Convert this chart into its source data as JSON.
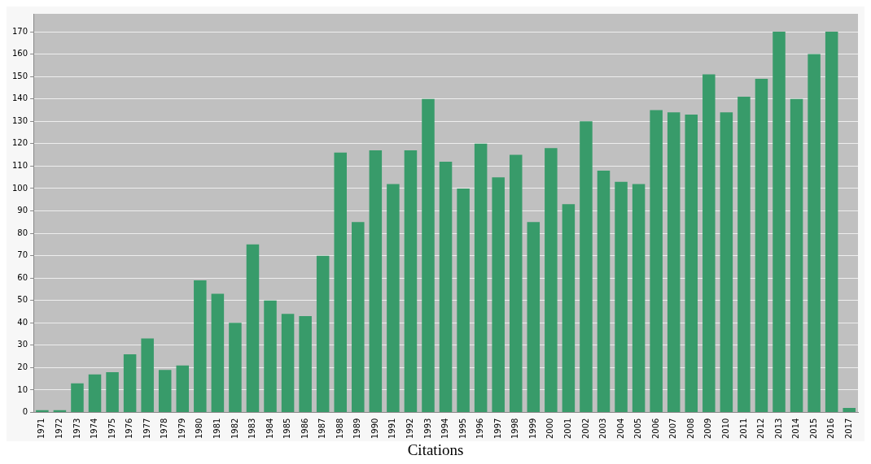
{
  "chart_data": {
    "type": "bar",
    "annotations": [
      "Citations"
    ],
    "categories": [
      "1971",
      "1972",
      "1973",
      "1974",
      "1975",
      "1976",
      "1977",
      "1978",
      "1979",
      "1980",
      "1981",
      "1982",
      "1983",
      "1984",
      "1985",
      "1986",
      "1987",
      "1988",
      "1989",
      "1990",
      "1991",
      "1992",
      "1993",
      "1994",
      "1995",
      "1996",
      "1997",
      "1998",
      "1999",
      "2000",
      "2001",
      "2002",
      "2003",
      "2004",
      "2005",
      "2006",
      "2007",
      "2008",
      "2009",
      "2010",
      "2011",
      "2012",
      "2013",
      "2014",
      "2015",
      "2016",
      "2017"
    ],
    "values": [
      1,
      1,
      13,
      17,
      18,
      26,
      33,
      19,
      21,
      59,
      53,
      40,
      75,
      50,
      44,
      43,
      70,
      116,
      85,
      117,
      102,
      117,
      140,
      112,
      100,
      120,
      105,
      115,
      85,
      118,
      93,
      130,
      108,
      103,
      102,
      135,
      134,
      133,
      151,
      134,
      141,
      149,
      170,
      140,
      160,
      170,
      2
    ],
    "color": "#389b6a",
    "ylim": [
      0,
      178
    ],
    "yticks": [
      0,
      10,
      20,
      30,
      40,
      50,
      60,
      70,
      80,
      90,
      100,
      110,
      120,
      130,
      140,
      150,
      160,
      170
    ],
    "grid": "y",
    "legend": false
  }
}
